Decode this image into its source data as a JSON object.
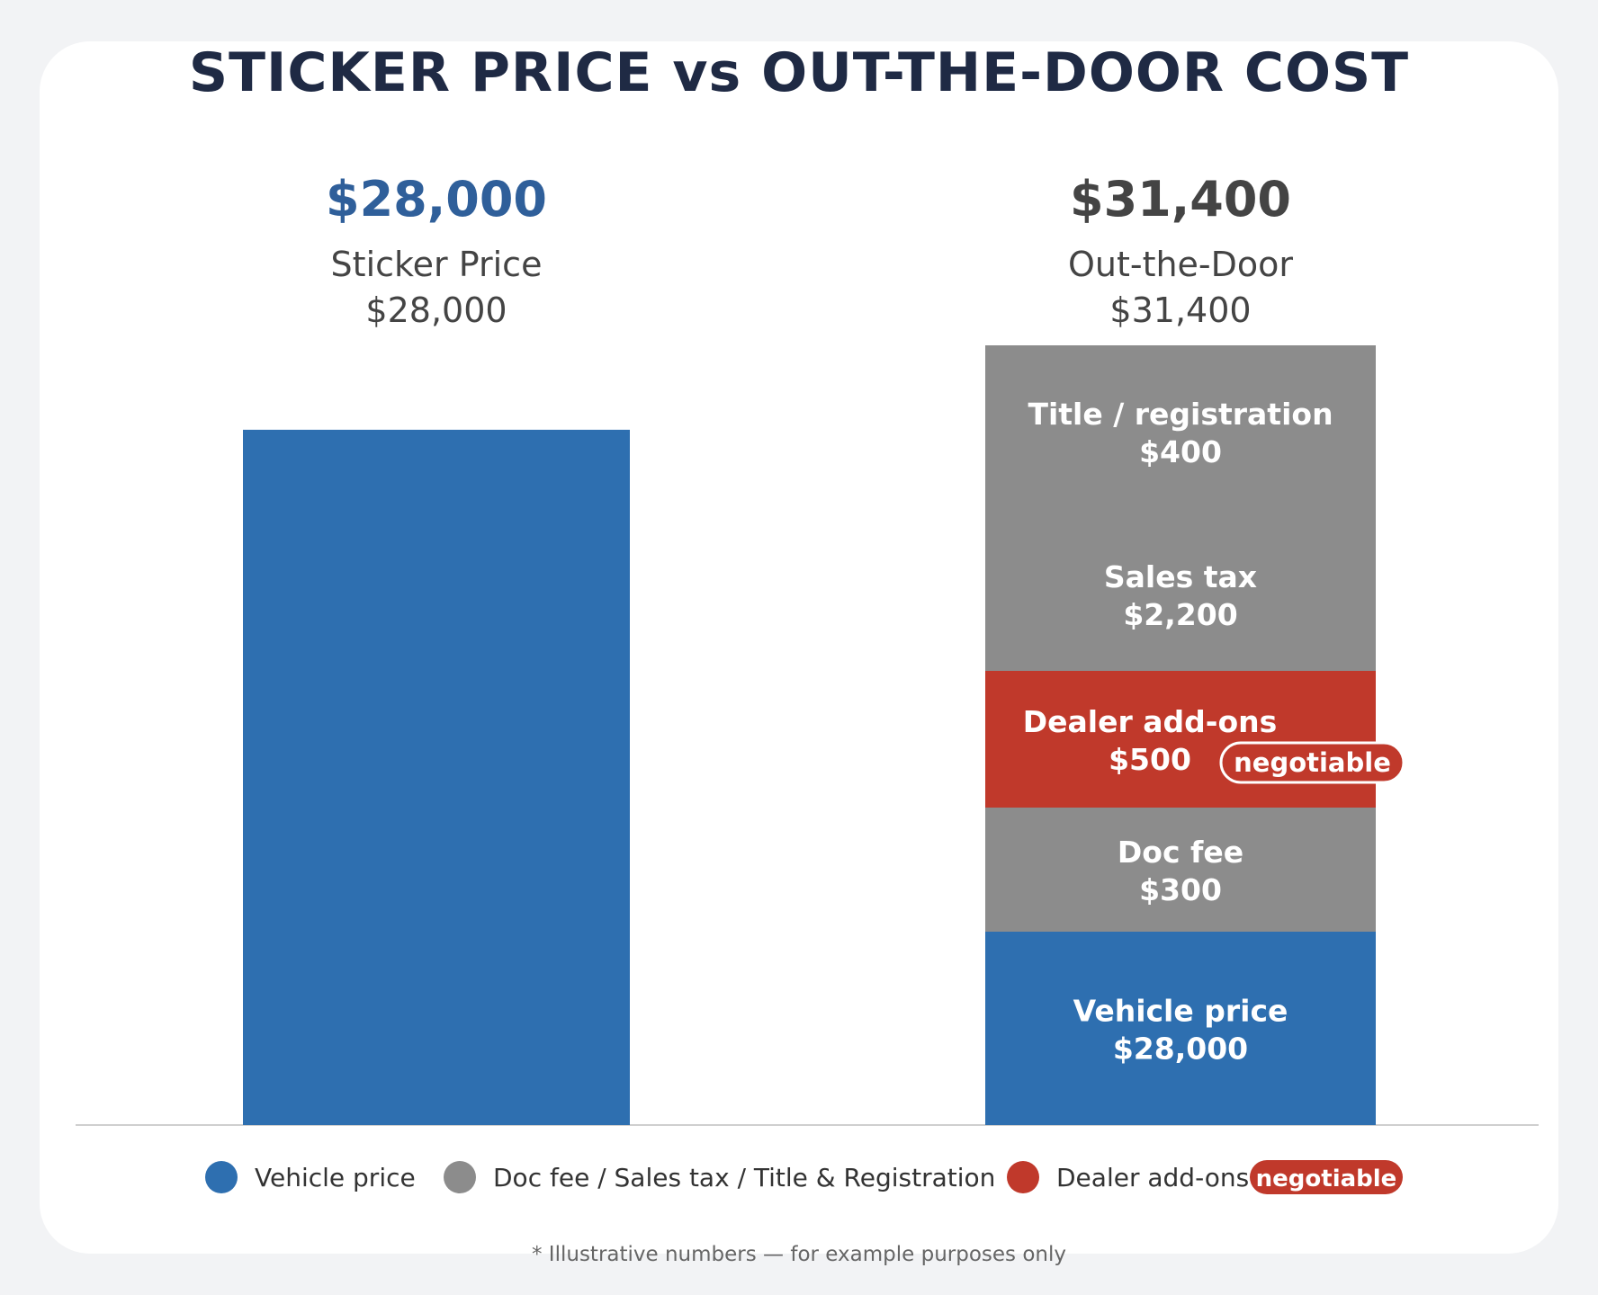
{
  "title": "STICKER PRICE vs OUT-THE-DOOR COST",
  "chart_data": {
    "type": "bar",
    "stacked": true,
    "ylim": [
      0,
      31400
    ],
    "grid": false,
    "legend_position": "bottom",
    "bars": [
      {
        "total_label": "$28,000",
        "name": "Sticker Price",
        "amount_label": "$28,000",
        "total": 28000,
        "header_color": "#2f5f9a",
        "segments": [
          {
            "label": "",
            "value_label": "",
            "value": 28000,
            "color": "#2e6fb0"
          }
        ]
      },
      {
        "total_label": "$31,400",
        "name": "Out-the-Door",
        "amount_label": "$31,400",
        "total": 31400,
        "header_color": "#444444",
        "segments": [
          {
            "label": "Vehicle price",
            "value_label": "$28,000",
            "value": 28000,
            "color": "#2e6fb0"
          },
          {
            "label": "Doc fee",
            "value_label": "$300",
            "value": 300,
            "color": "#8c8c8c"
          },
          {
            "label": "Dealer add-ons",
            "value_label": "$500",
            "value": 500,
            "color": "#c0392b",
            "badge": "negotiable"
          },
          {
            "label": "Sales tax",
            "value_label": "$2,200",
            "value": 2200,
            "color": "#8c8c8c"
          },
          {
            "label": "Title / registration",
            "value_label": "$400",
            "value": 400,
            "color": "#8c8c8c"
          }
        ]
      }
    ],
    "legend": [
      {
        "label": "Vehicle price",
        "color": "#2e6fb0"
      },
      {
        "label": "Doc fee / Sales tax / Title & Registration",
        "color": "#8c8c8c"
      },
      {
        "label": "Dealer add-ons",
        "color": "#c0392b",
        "badge": "negotiable"
      }
    ]
  },
  "footnote": "* Illustrative numbers — for example purposes only"
}
